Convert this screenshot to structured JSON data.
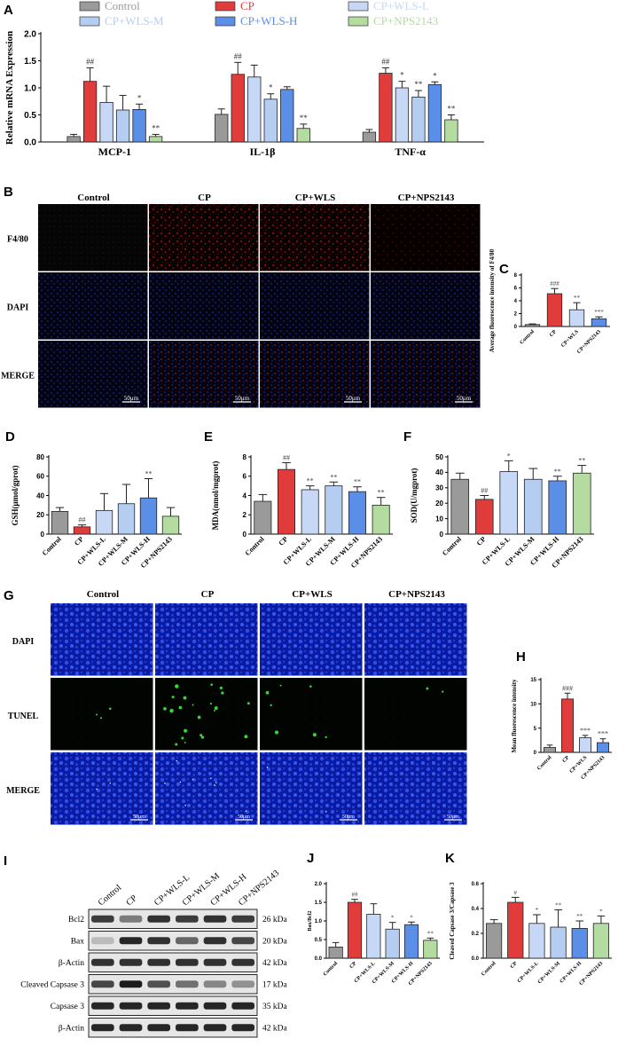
{
  "colors": {
    "control": "#9a9a9a",
    "cp": "#e03c3c",
    "wls_l": "#c6d8f5",
    "wls_m": "#b6cdf2",
    "wls_h": "#5b8ee6",
    "nps": "#b4dba0",
    "red_stain": "#b01818",
    "blue_stain": "#1a2fc8",
    "green_stain": "#3ad23a"
  },
  "panel_letters": {
    "A": "A",
    "B": "B",
    "C": "C",
    "D": "D",
    "E": "E",
    "F": "F",
    "G": "G",
    "H": "H",
    "I": "I",
    "J": "J",
    "K": "K"
  },
  "panel_a": {
    "legend": [
      "Control",
      "CP",
      "CP+WLS-L",
      "CP+WLS-M",
      "CP+WLS-H",
      "CP+NPS2143"
    ]
  },
  "panel_b": {
    "columns": [
      "Control",
      "CP",
      "CP+WLS",
      "CP+NPS2143"
    ],
    "rows": [
      "F4/80",
      "DAPI",
      "MERGE"
    ],
    "scale": "50μm"
  },
  "panel_g": {
    "columns": [
      "Control",
      "CP",
      "CP+WLS",
      "CP+NPS2143"
    ],
    "rows": [
      "DAPI",
      "TUNEL",
      "MERGE"
    ],
    "scale": "50μm"
  },
  "panel_i": {
    "lanes": [
      "Control",
      "CP",
      "CP+WLS-L",
      "CP+WLS-M",
      "CP+WLS-H",
      "CP+NPS2143"
    ],
    "bands": [
      {
        "name": "Bcl2",
        "kda": "26 kDa"
      },
      {
        "name": "Bax",
        "kda": "20 kDa"
      },
      {
        "name": "β-Actin",
        "kda": "42 kDa"
      },
      {
        "name": "Cleaved Capsase 3",
        "kda": "17 kDa"
      },
      {
        "name": "Capsase 3",
        "kda": "35 kDa"
      },
      {
        "name": "β-Actin",
        "kda": "42 kDa"
      }
    ]
  },
  "chart_data": [
    {
      "id": "A",
      "type": "bar",
      "ylabel": "Relative mRNA Expression",
      "ylim": [
        0,
        2.0
      ],
      "yticks": [
        "0.0",
        "0.5",
        "1.0",
        "1.5",
        "2.0"
      ],
      "groups": [
        "MCP-1",
        "IL-1β",
        "TNF-α"
      ],
      "series": [
        {
          "name": "Control",
          "color_key": "control",
          "values": [
            0.1,
            0.51,
            0.18
          ],
          "errors": [
            0.04,
            0.1,
            0.05
          ],
          "sig": [
            "",
            "",
            ""
          ]
        },
        {
          "name": "CP",
          "color_key": "cp",
          "values": [
            1.12,
            1.25,
            1.27
          ],
          "errors": [
            0.25,
            0.22,
            0.1
          ],
          "sig": [
            "##",
            "##",
            "##"
          ]
        },
        {
          "name": "CP+WLS-L",
          "color_key": "wls_l",
          "values": [
            0.73,
            1.2,
            1.0
          ],
          "errors": [
            0.3,
            0.22,
            0.12
          ],
          "sig": [
            "",
            "",
            "*"
          ]
        },
        {
          "name": "CP+WLS-M",
          "color_key": "wls_m",
          "values": [
            0.59,
            0.79,
            0.83
          ],
          "errors": [
            0.27,
            0.1,
            0.12
          ],
          "sig": [
            "",
            "*",
            "**"
          ]
        },
        {
          "name": "CP+WLS-H",
          "color_key": "wls_h",
          "values": [
            0.6,
            0.97,
            1.06
          ],
          "errors": [
            0.1,
            0.05,
            0.05
          ],
          "sig": [
            "*",
            "",
            "*"
          ]
        },
        {
          "name": "CP+NPS2143",
          "color_key": "nps",
          "values": [
            0.1,
            0.25,
            0.41
          ],
          "errors": [
            0.04,
            0.08,
            0.09
          ],
          "sig": [
            "**",
            "**",
            "**"
          ]
        }
      ]
    },
    {
      "id": "C",
      "type": "bar",
      "ylabel": "Average fluorescence intensity of F4/80",
      "ylim": [
        0,
        8
      ],
      "yticks": [
        "0",
        "2",
        "4",
        "6",
        "8"
      ],
      "categories": [
        "Control",
        "CP",
        "CP+WLS",
        "CP+NPS2143"
      ],
      "color_keys": [
        "control",
        "cp",
        "wls_l",
        "wls_h"
      ],
      "values": [
        0.3,
        5.1,
        2.6,
        1.2
      ],
      "errors": [
        0.1,
        0.8,
        1.1,
        0.3
      ],
      "sig": [
        "",
        "###",
        "**",
        "***"
      ]
    },
    {
      "id": "D",
      "type": "bar",
      "ylabel": "GSH(μmol/gprot)",
      "ylim": [
        0,
        80
      ],
      "yticks": [
        "0",
        "20",
        "40",
        "60",
        "80"
      ],
      "categories": [
        "Control",
        "CP",
        "CP+WLS-L",
        "CP+WLS-M",
        "CP+WLS-H",
        "CP+NPS2143"
      ],
      "color_keys": [
        "control",
        "cp",
        "wls_l",
        "wls_m",
        "wls_h",
        "nps"
      ],
      "values": [
        23.5,
        7.5,
        24.5,
        31.5,
        37.5,
        18.5
      ],
      "errors": [
        4,
        2,
        17.5,
        20,
        20,
        9
      ],
      "sig": [
        "",
        "##",
        "",
        "",
        "**",
        ""
      ]
    },
    {
      "id": "E",
      "type": "bar",
      "ylabel": "MDA(nmol/mgprot)",
      "ylim": [
        0,
        8
      ],
      "yticks": [
        "0",
        "2",
        "4",
        "6",
        "8"
      ],
      "categories": [
        "Control",
        "CP",
        "CP+WLS-L",
        "CP+WLS-M",
        "CP+WLS-H",
        "CP+NPS2143"
      ],
      "color_keys": [
        "control",
        "cp",
        "wls_l",
        "wls_m",
        "wls_h",
        "nps"
      ],
      "values": [
        3.4,
        6.7,
        4.6,
        5.0,
        4.4,
        3.0
      ],
      "errors": [
        0.7,
        0.7,
        0.4,
        0.4,
        0.5,
        0.8
      ],
      "sig": [
        "",
        "##",
        "**",
        "**",
        "**",
        "**"
      ]
    },
    {
      "id": "F",
      "type": "bar",
      "ylabel": "SOD(U/mgprot)",
      "ylim": [
        0,
        50
      ],
      "yticks": [
        "0",
        "10",
        "20",
        "30",
        "40",
        "50"
      ],
      "categories": [
        "Control",
        "CP",
        "CP+WLS-L",
        "CP+WLS-M",
        "CP+WLS-H",
        "CP+NPS2143"
      ],
      "color_keys": [
        "control",
        "cp",
        "wls_l",
        "wls_m",
        "wls_h",
        "nps"
      ],
      "values": [
        35.5,
        22.5,
        40.5,
        35.5,
        34.5,
        39.5
      ],
      "errors": [
        4,
        2.5,
        7,
        7,
        3,
        5
      ],
      "sig": [
        "",
        "##",
        "*",
        "",
        "**",
        "**"
      ]
    },
    {
      "id": "H",
      "type": "bar",
      "ylabel": "Mean fluorescence intensity",
      "ylim": [
        0,
        15
      ],
      "yticks": [
        "0",
        "5",
        "10",
        "15"
      ],
      "categories": [
        "Control",
        "CP",
        "CP+WLS",
        "CP+NPS2143"
      ],
      "color_keys": [
        "control",
        "cp",
        "wls_l",
        "wls_h"
      ],
      "values": [
        1.0,
        11.0,
        3.0,
        2.0
      ],
      "errors": [
        0.5,
        1.2,
        0.5,
        0.8
      ],
      "sig": [
        "",
        "###",
        "***",
        "***"
      ]
    },
    {
      "id": "J",
      "type": "bar",
      "ylabel": "Bax/Bcl2",
      "ylim": [
        0,
        2.0
      ],
      "yticks": [
        "0.0",
        "0.5",
        "1.0",
        "1.5",
        "2.0"
      ],
      "categories": [
        "Control",
        "CP",
        "CP+WLS-L",
        "CP+WLS-M",
        "CP+WLS-H",
        "CP+NPS2143"
      ],
      "color_keys": [
        "control",
        "cp",
        "wls_l",
        "wls_m",
        "wls_h",
        "nps"
      ],
      "values": [
        0.3,
        1.5,
        1.18,
        0.78,
        0.9,
        0.48
      ],
      "errors": [
        0.12,
        0.08,
        0.28,
        0.18,
        0.07,
        0.06
      ],
      "sig": [
        "",
        "##",
        "",
        "*",
        "*",
        "**"
      ]
    },
    {
      "id": "K",
      "type": "bar",
      "ylabel": "Cleaved Capsase 3/Capsase 3",
      "ylim": [
        0,
        0.6
      ],
      "yticks": [
        "0.0",
        "0.2",
        "0.4",
        "0.6"
      ],
      "categories": [
        "Control",
        "CP",
        "CP+WLS-L",
        "CP+WLS-M",
        "CP+WLS-H",
        "CP+NPS2143"
      ],
      "color_keys": [
        "control",
        "cp",
        "wls_l",
        "wls_m",
        "wls_h",
        "nps"
      ],
      "values": [
        0.28,
        0.45,
        0.28,
        0.25,
        0.24,
        0.28
      ],
      "errors": [
        0.03,
        0.04,
        0.07,
        0.14,
        0.06,
        0.06
      ],
      "sig": [
        "",
        "#",
        "*",
        "**",
        "**",
        "*"
      ]
    }
  ]
}
